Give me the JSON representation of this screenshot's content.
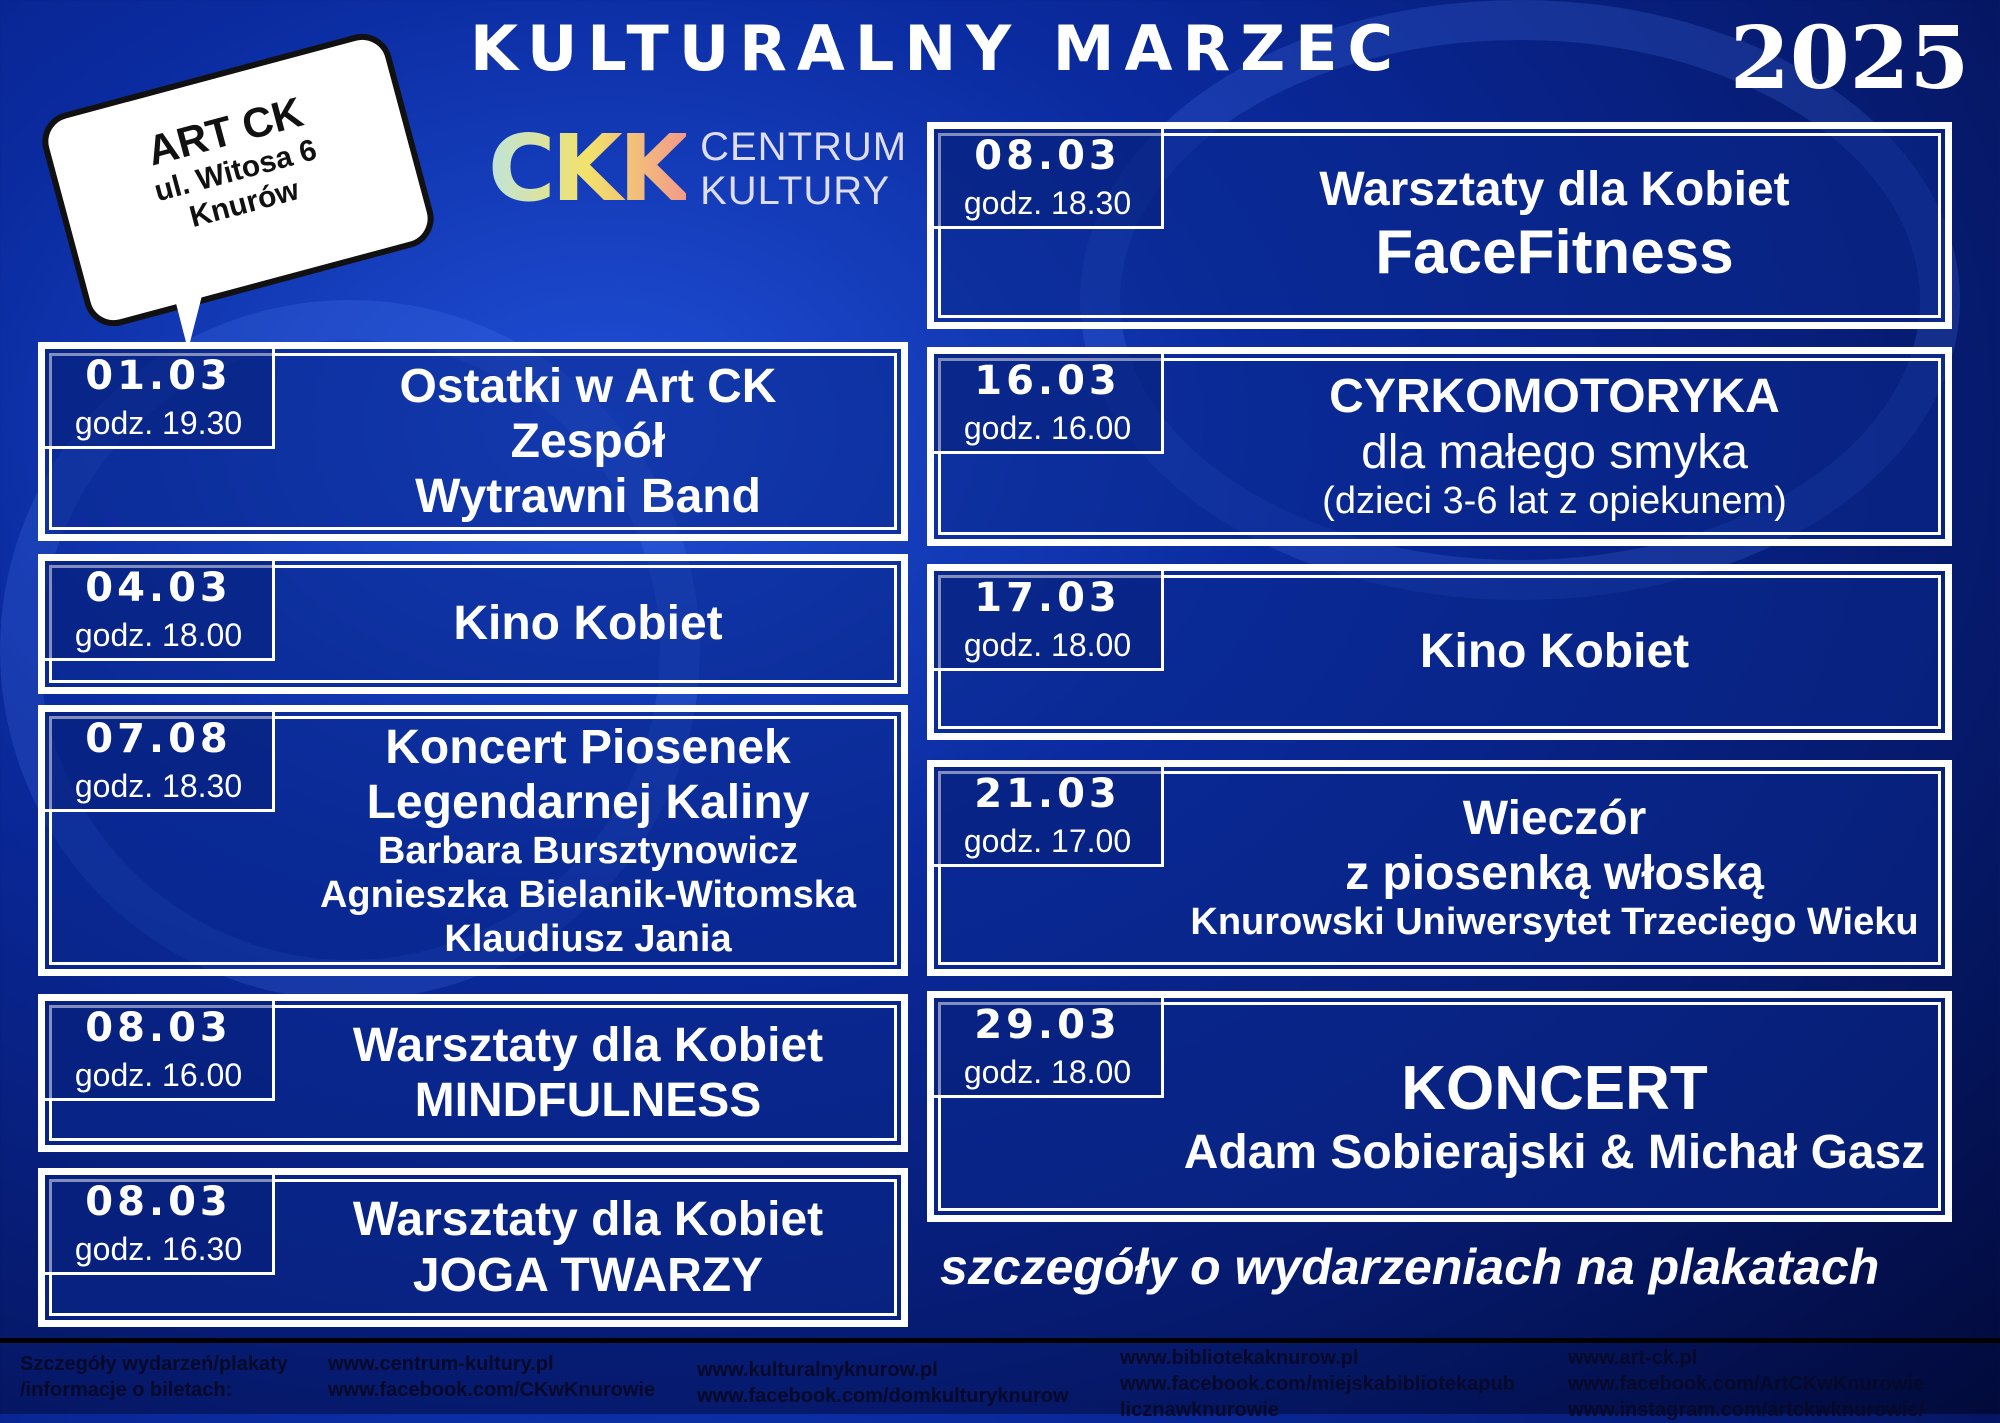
{
  "header": {
    "title": "KULTURALNY MARZEC",
    "year": "2025"
  },
  "bubble": {
    "line1": "ART CK",
    "line2": "ul. Witosa 6",
    "line3": "Knurów"
  },
  "logo": {
    "mark": "CKK",
    "line1": "CENTRUM",
    "line2": "KULTURY"
  },
  "events_left": [
    {
      "date": "01.03",
      "time": "godz. 19.30",
      "lines": [
        [
          "Ostatki w Art CK",
          "l1"
        ],
        [
          "Zespół",
          "l1"
        ],
        [
          "Wytrawni Band",
          "l1"
        ]
      ]
    },
    {
      "date": "04.03",
      "time": "godz. 18.00",
      "lines": [
        [
          "Kino Kobiet",
          "l1"
        ]
      ]
    },
    {
      "date": "07.08",
      "time": "godz. 18.30",
      "lines": [
        [
          "Koncert  Piosenek",
          "l1"
        ],
        [
          "Legendarnej Kaliny",
          "l1"
        ],
        [
          "Barbara Bursztynowicz",
          "l2"
        ],
        [
          "Agnieszka Bielanik-Witomska",
          "l2"
        ],
        [
          "Klaudiusz Jania",
          "l2"
        ]
      ]
    },
    {
      "date": "08.03",
      "time": "godz. 16.00",
      "lines": [
        [
          "Warsztaty dla Kobiet",
          "l1"
        ],
        [
          "MINDFULNESS",
          "l1"
        ]
      ]
    },
    {
      "date": "08.03",
      "time": "godz. 16.30",
      "lines": [
        [
          "Warsztaty dla Kobiet",
          "l1"
        ],
        [
          "JOGA TWARZY",
          "l1"
        ]
      ]
    }
  ],
  "events_right": [
    {
      "date": "08.03",
      "time": "godz. 18.30",
      "lines": [
        [
          "Warsztaty dla Kobiet",
          "l1"
        ],
        [
          "FaceFitness",
          "big"
        ]
      ]
    },
    {
      "date": "16.03",
      "time": "godz. 16.00",
      "lines": [
        [
          "CYRKOMOTORYKA",
          "l1"
        ],
        [
          "dla małego smyka",
          "l3big"
        ],
        [
          "(dzieci 3-6 lat z opiekunem)",
          "l3"
        ]
      ]
    },
    {
      "date": "17.03",
      "time": "godz. 18.00",
      "lines": [
        [
          "Kino Kobiet",
          "l1"
        ]
      ]
    },
    {
      "date": "21.03",
      "time": "godz. 17.00",
      "lines": [
        [
          "Wieczór",
          "l1"
        ],
        [
          "z piosenką włoską",
          "l1"
        ],
        [
          "Knurowski Uniwersytet Trzeciego Wieku",
          "l2"
        ]
      ]
    },
    {
      "date": "29.03",
      "time": "godz. 18.00",
      "lines": [
        [
          "KONCERT",
          "big"
        ],
        [
          "Adam Sobierajski & Michał Gasz",
          "l1"
        ]
      ]
    }
  ],
  "tagline": "szczegóły o wydarzeniach na plakatach",
  "footer": {
    "label1": "Szczegóły wydarzeń/plakaty",
    "label2": "/informacje o biletach:",
    "col1": [
      "www.centrum-kultury.pl",
      "www.facebook.com/CKwKnurowie"
    ],
    "col2": [
      "www.kulturalnyknurow.pl",
      "www.facebook.com/domkulturyknurow"
    ],
    "col3": [
      "www.bibliotekaknurow.pl",
      "www.facebook.com/miejskabibliotekapub",
      "licznawknurowie"
    ],
    "col4": [
      "www.art-ck.pl",
      "www.facebook.com/ArtCKwKnurowie",
      "www.instagram.com/artckwknurowie/"
    ]
  }
}
